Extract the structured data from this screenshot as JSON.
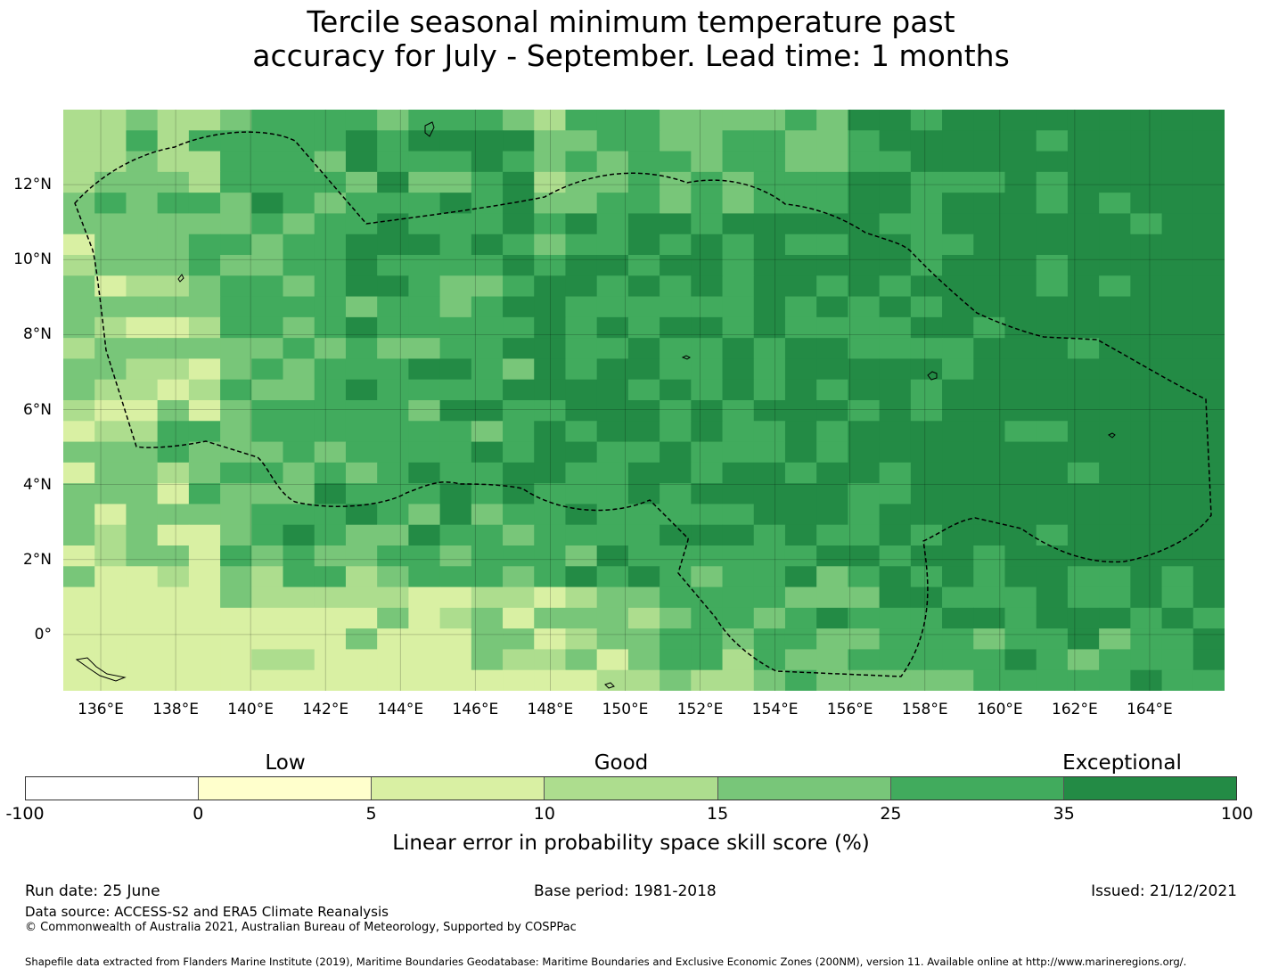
{
  "title_line1": "Tercile seasonal minimum temperature past",
  "title_line2": "accuracy for July - September. Lead time: 1 months",
  "map": {
    "lon_range": [
      "135°E",
      "166°E"
    ],
    "lat_range": [
      "1.5°S",
      "14°N"
    ],
    "lon_ticks": [
      "136°E",
      "138°E",
      "140°E",
      "142°E",
      "144°E",
      "146°E",
      "148°E",
      "150°E",
      "152°E",
      "154°E",
      "156°E",
      "158°E",
      "160°E",
      "162°E",
      "164°E"
    ],
    "lat_ticks": [
      "12°N",
      "10°N",
      "8°N",
      "6°N",
      "4°N",
      "2°N",
      "0°"
    ],
    "boundary_style": "dashed black EEZ outline",
    "grid": true
  },
  "legend": {
    "categories": [
      {
        "label": "Low"
      },
      {
        "label": "Good"
      },
      {
        "label": "Exceptional"
      }
    ],
    "tick_labels": [
      "-100",
      "0",
      "5",
      "10",
      "15",
      "25",
      "35",
      "100"
    ],
    "colors": [
      "#ffffff",
      "#ffffcc",
      "#d9f0a3",
      "#addd8e",
      "#78c679",
      "#41ab5d",
      "#238b45"
    ],
    "axis_label": "Linear error in probability space skill score (%)"
  },
  "footer": {
    "run_date": "Run date: 25 June",
    "base_period": "Base period: 1981-2018",
    "issued": "Issued: 21/12/2021",
    "data_source": "Data source: ACCESS-S2 and ERA5 Climate Reanalysis",
    "copyright": "© Commonwealth of Australia 2021, Australian Bureau of Meteorology, Supported by COSPPac",
    "shapefile": "Shapefile data extracted from Flanders Marine Institute (2019), Maritime Boundaries Geodatabase: Maritime Boundaries and Exclusive Economic Zones (200NM), version 11. Available online at http://www.marineregions.org/."
  }
}
